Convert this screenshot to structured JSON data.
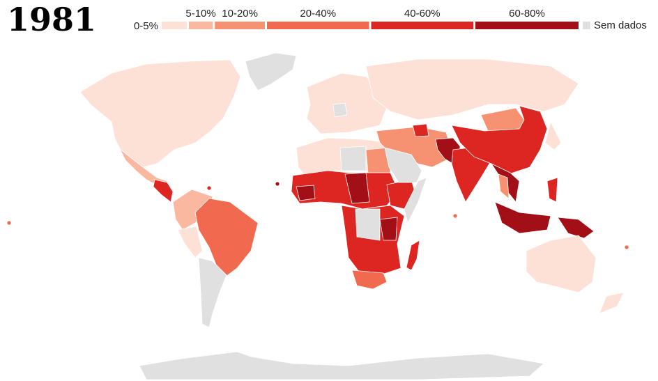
{
  "title": "1981",
  "legend": {
    "bounds": [
      0,
      5,
      10,
      20,
      40,
      60,
      80
    ],
    "labels": [
      "0-5%",
      "5-10%",
      "10-20%",
      "20-40%",
      "40-60%",
      "60-80%"
    ],
    "colors": [
      "#fde1d6",
      "#fbb8a0",
      "#f69171",
      "#f16a4f",
      "#dd2522",
      "#a30f16"
    ],
    "no_data_label": "Sem dados",
    "no_data_color": "#e0e0e0"
  }
}
